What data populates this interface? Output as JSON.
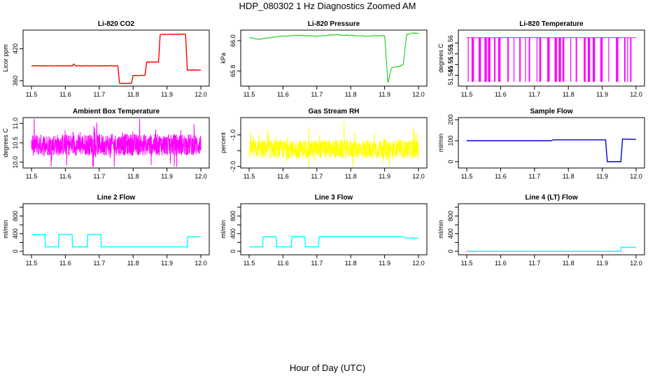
{
  "figure": {
    "title": "HDP_080302  1 Hz Diagnostics Zoomed AM",
    "xlabel": "Hour of Day (UTC)"
  },
  "chart_data": [
    {
      "id": "co2",
      "type": "line",
      "title": "Li-820 CO2",
      "ylabel": "Licor ppm",
      "color": "#ff0000",
      "xlim": [
        11.5,
        12.0
      ],
      "ylim": [
        350,
        455
      ],
      "yticks": [
        360,
        420
      ],
      "yticklabels": [
        "360",
        "420"
      ],
      "x": [
        11.5,
        11.62,
        11.625,
        11.63,
        11.755,
        11.76,
        11.795,
        11.8,
        11.835,
        11.84,
        11.875,
        11.88,
        11.955,
        11.96,
        12.0
      ],
      "y": [
        388,
        388,
        392,
        388,
        388,
        355,
        355,
        370,
        370,
        395,
        395,
        447,
        447,
        380,
        380
      ]
    },
    {
      "id": "pressure",
      "type": "line",
      "title": "Li-820 Pressure",
      "ylabel": "kPa",
      "color": "#00cc00",
      "xlim": [
        11.5,
        12.0
      ],
      "ylim": [
        65.7,
        66.07
      ],
      "yticks": [
        65.8,
        66.0
      ],
      "yticklabels": [
        "65.8",
        "66.0"
      ],
      "x": [
        11.5,
        11.53,
        11.56,
        11.6,
        11.65,
        11.7,
        11.75,
        11.8,
        11.85,
        11.9,
        11.91,
        11.92,
        11.94,
        11.955,
        11.965,
        11.98,
        12.0
      ],
      "y": [
        66.02,
        66.01,
        66.02,
        66.03,
        66.035,
        66.03,
        66.04,
        66.035,
        66.03,
        66.035,
        65.72,
        65.82,
        65.83,
        65.84,
        66.04,
        66.05,
        66.05
      ]
    },
    {
      "id": "temperature",
      "type": "line",
      "title": "Li-820 Temperature",
      "ylabel": "degrees C",
      "color": "#ff00ff",
      "xlim": [
        11.5,
        12.0
      ],
      "ylim": [
        51.54,
        51.566
      ],
      "yticks": [
        51.545,
        51.55,
        51.555,
        51.56
      ],
      "yticklabels": [
        "51.545",
        "51.55",
        "51.555",
        "51.56"
      ],
      "x": [
        11.5,
        12.0
      ],
      "y": [
        51.5625,
        51.5625
      ]
    },
    {
      "id": "ambient",
      "type": "line",
      "title": "Ambient Box Temperature",
      "ylabel": "degrees C",
      "color": "#ff00ff",
      "xlim": [
        11.5,
        12.0
      ],
      "ylim": [
        9.85,
        11.15
      ],
      "yticks": [
        10.0,
        10.5,
        11.0
      ],
      "yticklabels": [
        "10.0",
        "10.5",
        "11.0"
      ],
      "x": [
        11.5,
        12.0
      ],
      "y": [
        10.45,
        10.45
      ]
    },
    {
      "id": "rh",
      "type": "line",
      "title": "Gas Stream RH",
      "ylabel": "percent",
      "color": "#ffff00",
      "xlim": [
        11.5,
        12.0
      ],
      "ylim": [
        -2.05,
        -0.45
      ],
      "yticks": [
        -2,
        -1.5,
        -1
      ],
      "yticklabels": [
        "-2.0",
        "",
        "-1.0"
      ],
      "x": [
        11.5,
        12.0
      ],
      "y": [
        -1.45,
        -1.45
      ]
    },
    {
      "id": "sample",
      "type": "line",
      "title": "Sample Flow",
      "ylabel": "ml/min",
      "color": "#0000cc",
      "xlim": [
        11.5,
        12.0
      ],
      "ylim": [
        -30,
        210
      ],
      "yticks": [
        0,
        100,
        200
      ],
      "yticklabels": [
        "0",
        "100",
        "200"
      ],
      "x": [
        11.5,
        11.75,
        11.755,
        11.91,
        11.915,
        11.955,
        11.96,
        12.0
      ],
      "y": [
        100,
        100,
        104,
        104,
        0,
        0,
        108,
        106
      ]
    },
    {
      "id": "line2",
      "type": "line",
      "title": "Line 2 Flow",
      "ylabel": "ml/min",
      "color": "#00ffff",
      "xlim": [
        11.5,
        12.0
      ],
      "ylim": [
        -80,
        1080
      ],
      "yticks": [
        0,
        200,
        400,
        600,
        800,
        1000
      ],
      "yticklabels": [
        "0",
        "",
        "400",
        "",
        "800",
        ""
      ],
      "x": [
        11.5,
        11.54,
        11.541,
        11.58,
        11.581,
        11.62,
        11.621,
        11.665,
        11.666,
        11.705,
        11.706,
        11.96,
        11.961,
        12.0
      ],
      "y": [
        380,
        380,
        100,
        100,
        380,
        380,
        100,
        100,
        380,
        380,
        100,
        100,
        330,
        330
      ]
    },
    {
      "id": "line3",
      "type": "line",
      "title": "Line 3 Flow",
      "ylabel": "ml/min",
      "color": "#00ffff",
      "xlim": [
        11.5,
        12.0
      ],
      "ylim": [
        -80,
        1080
      ],
      "yticks": [
        0,
        200,
        400,
        600,
        800,
        1000
      ],
      "yticklabels": [
        "0",
        "",
        "400",
        "",
        "800",
        ""
      ],
      "x": [
        11.5,
        11.54,
        11.541,
        11.58,
        11.581,
        11.625,
        11.626,
        11.665,
        11.666,
        11.705,
        11.706,
        11.955,
        11.96,
        12.0
      ],
      "y": [
        100,
        100,
        330,
        330,
        100,
        100,
        330,
        330,
        100,
        100,
        330,
        330,
        300,
        300
      ]
    },
    {
      "id": "line4",
      "type": "line",
      "title": "Line 4 (LT) Flow",
      "ylabel": "ml/min",
      "color": "#00ffff",
      "xlim": [
        11.5,
        12.0
      ],
      "ylim": [
        -80,
        1080
      ],
      "yticks": [
        0,
        200,
        400,
        600,
        800,
        1000
      ],
      "yticklabels": [
        "0",
        "",
        "400",
        "",
        "800",
        ""
      ],
      "x": [
        11.5,
        11.955,
        11.956,
        12.0
      ],
      "y": [
        0,
        0,
        90,
        90
      ]
    }
  ],
  "xticks": [
    11.5,
    11.6,
    11.7,
    11.8,
    11.9,
    12.0
  ],
  "xticklabels": [
    "11.5",
    "11.6",
    "11.7",
    "11.8",
    "11.9",
    "12.0"
  ]
}
